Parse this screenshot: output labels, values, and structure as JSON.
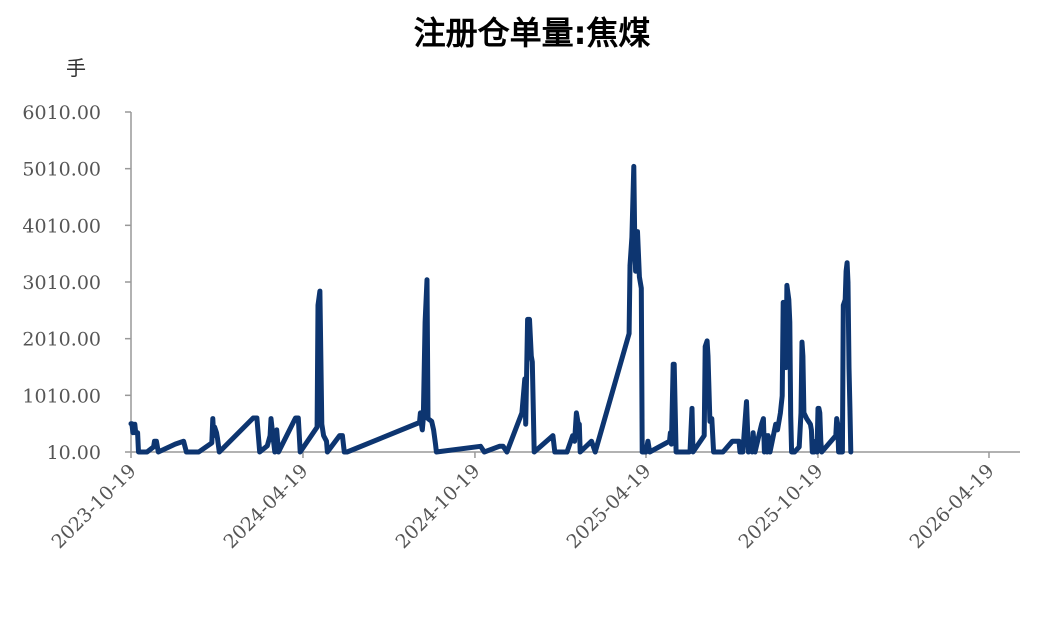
{
  "chart_data": {
    "type": "line",
    "title": "注册仓单量:焦煤",
    "ylabel": "手",
    "xlabel": "",
    "ylim": [
      10,
      6010
    ],
    "y_ticks": [
      "10.00",
      "1010.00",
      "2010.00",
      "3010.00",
      "4010.00",
      "5010.00",
      "6010.00"
    ],
    "x_ticks": [
      "2023-10-19",
      "2024-04-19",
      "2024-10-19",
      "2025-04-19",
      "2025-10-19",
      "2026-04-19"
    ],
    "xlim": [
      "2023-10-19",
      "2026-05-22"
    ],
    "grid": false,
    "legend": "none",
    "line_color": "#0d3570",
    "series": [
      {
        "points": [
          [
            "2023-10-19",
            510
          ],
          [
            "2023-10-20",
            510
          ],
          [
            "2023-10-21",
            350
          ],
          [
            "2023-10-23",
            500
          ],
          [
            "2023-10-24",
            350
          ],
          [
            "2023-10-26",
            350
          ],
          [
            "2023-10-27",
            10
          ],
          [
            "2023-11-05",
            10
          ],
          [
            "2023-11-12",
            100
          ],
          [
            "2023-11-13",
            200
          ],
          [
            "2023-11-15",
            200
          ],
          [
            "2023-11-17",
            10
          ],
          [
            "2023-12-05",
            150
          ],
          [
            "2023-12-14",
            200
          ],
          [
            "2023-12-17",
            10
          ],
          [
            "2023-12-30",
            10
          ],
          [
            "2024-01-13",
            170
          ],
          [
            "2024-01-14",
            600
          ],
          [
            "2024-01-15",
            300
          ],
          [
            "2024-01-16",
            450
          ],
          [
            "2024-01-18",
            350
          ],
          [
            "2024-01-19",
            250
          ],
          [
            "2024-01-21",
            10
          ],
          [
            "2024-02-26",
            610
          ],
          [
            "2024-03-01",
            610
          ],
          [
            "2024-03-04",
            10
          ],
          [
            "2024-03-12",
            120
          ],
          [
            "2024-03-15",
            300
          ],
          [
            "2024-03-16",
            600
          ],
          [
            "2024-03-18",
            300
          ],
          [
            "2024-03-20",
            10
          ],
          [
            "2024-03-22",
            400
          ],
          [
            "2024-03-24",
            10
          ],
          [
            "2024-04-11",
            610
          ],
          [
            "2024-04-14",
            610
          ],
          [
            "2024-04-16",
            10
          ],
          [
            "2024-05-04",
            450
          ],
          [
            "2024-05-05",
            2600
          ],
          [
            "2024-05-07",
            2850
          ],
          [
            "2024-05-09",
            500
          ],
          [
            "2024-05-11",
            300
          ],
          [
            "2024-05-14",
            200
          ],
          [
            "2024-05-15",
            10
          ],
          [
            "2024-05-28",
            300
          ],
          [
            "2024-05-31",
            300
          ],
          [
            "2024-06-02",
            10
          ],
          [
            "2024-06-05",
            10
          ],
          [
            "2024-08-21",
            530
          ],
          [
            "2024-08-22",
            700
          ],
          [
            "2024-08-23",
            500
          ],
          [
            "2024-08-24",
            400
          ],
          [
            "2024-08-25",
            600
          ],
          [
            "2024-08-27",
            2300
          ],
          [
            "2024-08-29",
            3050
          ],
          [
            "2024-08-30",
            600
          ],
          [
            "2024-09-03",
            550
          ],
          [
            "2024-09-05",
            400
          ],
          [
            "2024-09-07",
            150
          ],
          [
            "2024-09-08",
            10
          ],
          [
            "2024-10-25",
            110
          ],
          [
            "2024-10-29",
            10
          ],
          [
            "2024-11-14",
            110
          ],
          [
            "2024-11-18",
            110
          ],
          [
            "2024-11-22",
            10
          ],
          [
            "2024-12-08",
            700
          ],
          [
            "2024-12-11",
            1300
          ],
          [
            "2024-12-12",
            500
          ],
          [
            "2024-12-14",
            2350
          ],
          [
            "2024-12-16",
            2350
          ],
          [
            "2024-12-18",
            1700
          ],
          [
            "2024-12-19",
            1600
          ],
          [
            "2024-12-21",
            10
          ],
          [
            "2025-01-10",
            300
          ],
          [
            "2025-01-12",
            10
          ],
          [
            "2025-01-25",
            10
          ],
          [
            "2025-01-31",
            300
          ],
          [
            "2025-02-02",
            200
          ],
          [
            "2025-02-04",
            700
          ],
          [
            "2025-02-06",
            500
          ],
          [
            "2025-02-07",
            500
          ],
          [
            "2025-02-08",
            10
          ],
          [
            "2025-02-20",
            200
          ],
          [
            "2025-02-24",
            10
          ],
          [
            "2025-04-01",
            2100
          ],
          [
            "2025-04-02",
            3300
          ],
          [
            "2025-04-04",
            3800
          ],
          [
            "2025-04-06",
            5050
          ],
          [
            "2025-04-07",
            3800
          ],
          [
            "2025-04-08",
            3200
          ],
          [
            "2025-04-10",
            3900
          ],
          [
            "2025-04-12",
            3100
          ],
          [
            "2025-04-14",
            2900
          ],
          [
            "2025-04-15",
            10
          ],
          [
            "2025-04-19",
            10
          ],
          [
            "2025-04-21",
            200
          ],
          [
            "2025-04-23",
            10
          ],
          [
            "2025-05-14",
            200
          ],
          [
            "2025-05-15",
            350
          ],
          [
            "2025-05-16",
            150
          ],
          [
            "2025-05-18",
            1560
          ],
          [
            "2025-05-19",
            1560
          ],
          [
            "2025-05-21",
            10
          ],
          [
            "2025-06-04",
            10
          ],
          [
            "2025-06-05",
            50
          ],
          [
            "2025-06-07",
            780
          ],
          [
            "2025-06-08",
            10
          ],
          [
            "2025-06-20",
            300
          ],
          [
            "2025-06-21",
            1870
          ],
          [
            "2025-06-23",
            1970
          ],
          [
            "2025-06-24",
            1700
          ],
          [
            "2025-06-26",
            550
          ],
          [
            "2025-06-28",
            600
          ],
          [
            "2025-06-30",
            10
          ],
          [
            "2025-07-10",
            10
          ],
          [
            "2025-07-20",
            200
          ],
          [
            "2025-07-27",
            200
          ],
          [
            "2025-07-28",
            10
          ],
          [
            "2025-07-31",
            10
          ],
          [
            "2025-08-04",
            900
          ],
          [
            "2025-08-06",
            10
          ],
          [
            "2025-08-08",
            150
          ],
          [
            "2025-08-10",
            10
          ],
          [
            "2025-08-11",
            350
          ],
          [
            "2025-08-13",
            10
          ],
          [
            "2025-08-20",
            500
          ],
          [
            "2025-08-22",
            600
          ],
          [
            "2025-08-23",
            10
          ],
          [
            "2025-08-25",
            300
          ],
          [
            "2025-08-26",
            10
          ],
          [
            "2025-08-27",
            300
          ],
          [
            "2025-08-29",
            10
          ],
          [
            "2025-09-04",
            500
          ],
          [
            "2025-09-06",
            400
          ],
          [
            "2025-09-09",
            700
          ],
          [
            "2025-09-11",
            1000
          ],
          [
            "2025-09-12",
            2650
          ],
          [
            "2025-09-13",
            1900
          ],
          [
            "2025-09-14",
            1600
          ],
          [
            "2025-09-15",
            1500
          ],
          [
            "2025-09-16",
            2950
          ],
          [
            "2025-09-18",
            2700
          ],
          [
            "2025-09-19",
            2300
          ],
          [
            "2025-09-20",
            650
          ],
          [
            "2025-09-21",
            10
          ],
          [
            "2025-09-24",
            10
          ],
          [
            "2025-09-29",
            100
          ],
          [
            "2025-09-30",
            400
          ],
          [
            "2025-10-01",
            700
          ],
          [
            "2025-10-02",
            1950
          ],
          [
            "2025-10-03",
            1700
          ],
          [
            "2025-10-04",
            700
          ],
          [
            "2025-10-07",
            600
          ],
          [
            "2025-10-11",
            500
          ],
          [
            "2025-10-12",
            400
          ],
          [
            "2025-10-13",
            10
          ],
          [
            "2025-10-14",
            200
          ],
          [
            "2025-10-15",
            10
          ],
          [
            "2025-10-17",
            200
          ],
          [
            "2025-10-18",
            10
          ],
          [
            "2025-10-19",
            780
          ],
          [
            "2025-10-20",
            780
          ],
          [
            "2025-10-21",
            700
          ],
          [
            "2025-10-22",
            200
          ],
          [
            "2025-10-23",
            10
          ],
          [
            "2025-11-07",
            300
          ],
          [
            "2025-11-08",
            600
          ],
          [
            "2025-11-09",
            500
          ],
          [
            "2025-11-10",
            10
          ],
          [
            "2025-11-12",
            10
          ],
          [
            "2025-11-14",
            10
          ],
          [
            "2025-11-15",
            2600
          ],
          [
            "2025-11-16",
            2650
          ],
          [
            "2025-11-17",
            2700
          ],
          [
            "2025-11-18",
            3200
          ],
          [
            "2025-11-19",
            3350
          ],
          [
            "2025-11-20",
            3000
          ],
          [
            "2025-11-21",
            1500
          ],
          [
            "2025-11-22",
            800
          ],
          [
            "2025-11-23",
            10
          ]
        ]
      }
    ]
  }
}
